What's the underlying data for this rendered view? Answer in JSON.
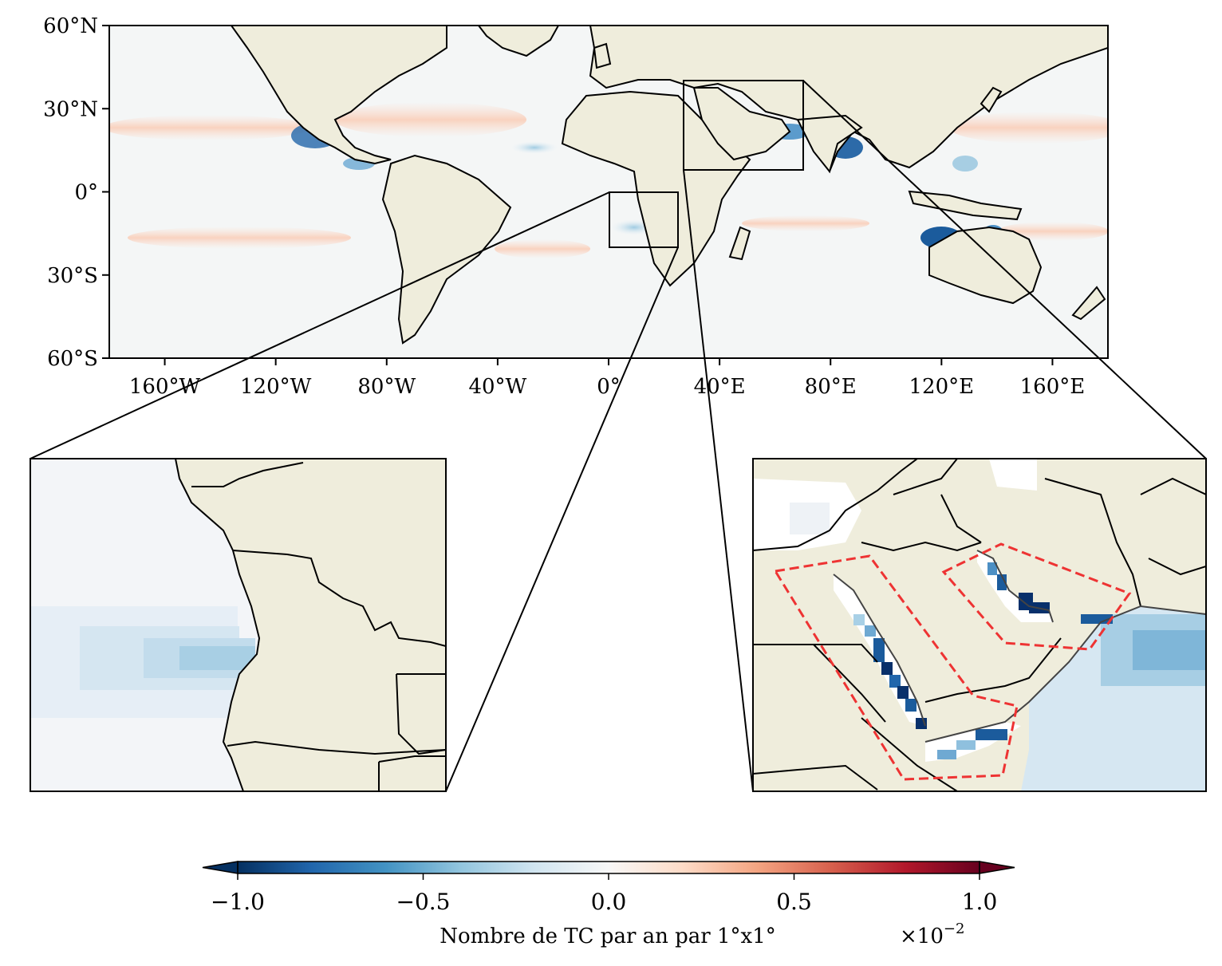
{
  "main_map": {
    "lat_ticks": [
      "60°N",
      "30°N",
      "0°",
      "30°S",
      "60°S"
    ],
    "lon_ticks": [
      "160°W",
      "120°W",
      "80°W",
      "40°W",
      "0°",
      "40°E",
      "80°E",
      "120°E",
      "160°E"
    ],
    "extent": {
      "lon": [
        -180,
        180
      ],
      "lat": [
        -60,
        60
      ]
    },
    "highlight_boxes": [
      {
        "name": "angola-box",
        "lon": [
          0,
          25
        ],
        "lat": [
          -20,
          0
        ]
      },
      {
        "name": "arabia-box",
        "lon": [
          27,
          70
        ],
        "lat": [
          8,
          40
        ]
      }
    ]
  },
  "colorbar": {
    "label": "Nombre de TC par an par 1°x1°",
    "multiplier": "×10",
    "exponent": "−2",
    "tick_labels": [
      "−1.0",
      "−0.5",
      "0.0",
      "0.5",
      "1.0"
    ],
    "range": [
      -1.0,
      1.0
    ],
    "colormap": "RdBu_r",
    "extend": "both"
  },
  "colors": {
    "land": "#efeddc",
    "ocean": "#f4f6f6",
    "positive": "#f8c9b0",
    "negative": "#1b5b9c",
    "dashed_region": "#ee3333"
  }
}
